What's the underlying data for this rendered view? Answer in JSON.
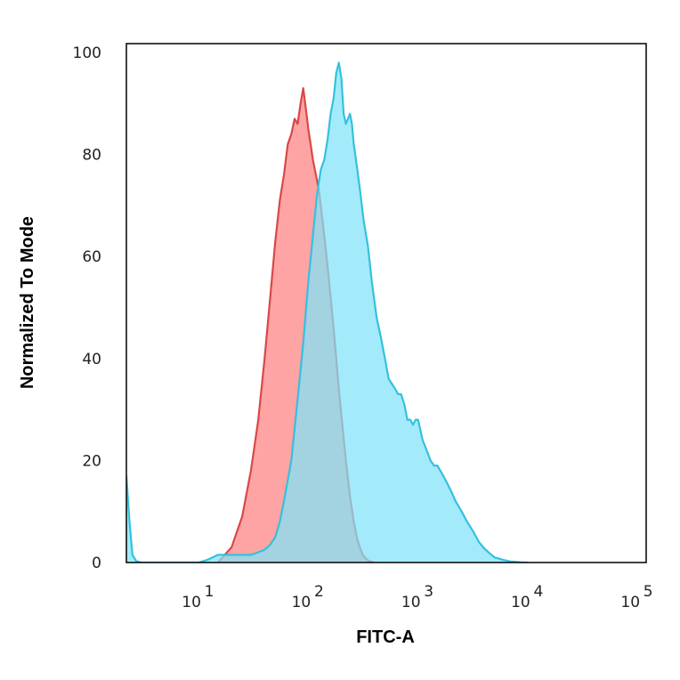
{
  "chart_data": {
    "type": "area",
    "xlabel": "FITC-A",
    "ylabel": "Normalized To Mode",
    "x_scale": "log",
    "xlim": [
      2.2,
      120000
    ],
    "ylim": [
      0,
      100
    ],
    "x_ticks": [
      {
        "value": 10,
        "base": "10",
        "exp": "1"
      },
      {
        "value": 100,
        "base": "10",
        "exp": "2"
      },
      {
        "value": 1000,
        "base": "10",
        "exp": "3"
      },
      {
        "value": 10000,
        "base": "10",
        "exp": "4"
      },
      {
        "value": 100000,
        "base": "10",
        "exp": "5"
      }
    ],
    "y_ticks": [
      "0",
      "20",
      "40",
      "60",
      "80",
      "100"
    ],
    "grid": false,
    "legend": "none",
    "series": [
      {
        "color_fill": "#ff8a8a",
        "color_line": "#d94848",
        "x": [
          15,
          20,
          25,
          30,
          35,
          40,
          45,
          50,
          55,
          60,
          65,
          70,
          75,
          80,
          85,
          90,
          95,
          100,
          105,
          110,
          115,
          120,
          125,
          130,
          140,
          150,
          160,
          170,
          180,
          190,
          200,
          220,
          240,
          260,
          280,
          300,
          320,
          350,
          400
        ],
        "y": [
          0,
          3,
          9,
          18,
          28,
          40,
          52,
          63,
          71,
          76,
          82,
          84,
          87,
          86,
          90,
          93,
          89,
          85,
          82,
          79,
          77,
          75,
          73,
          70,
          64,
          58,
          52,
          46,
          40,
          34,
          29,
          20,
          13,
          8,
          4.5,
          2.5,
          1.2,
          0.4,
          0
        ]
      },
      {
        "color_fill": "#7fe3f8",
        "color_line": "#35c0df",
        "x": [
          2.2,
          2.35,
          2.5,
          2.7,
          3,
          3.5,
          4,
          5,
          6,
          7,
          8,
          9,
          10,
          12,
          15,
          20,
          25,
          30,
          35,
          40,
          45,
          50,
          55,
          60,
          70,
          80,
          90,
          100,
          110,
          120,
          130,
          140,
          150,
          160,
          170,
          180,
          190,
          200,
          210,
          220,
          230,
          240,
          250,
          260,
          280,
          300,
          320,
          350,
          380,
          420,
          460,
          500,
          540,
          580,
          620,
          660,
          700,
          750,
          800,
          850,
          900,
          950,
          1000,
          1050,
          1100,
          1150,
          1200,
          1300,
          1400,
          1500,
          1600,
          1800,
          2000,
          2200,
          2500,
          2800,
          3200,
          3600,
          4000,
          4500,
          5000,
          6000,
          7000,
          8000,
          9000,
          10000
        ],
        "y": [
          17,
          8,
          1.5,
          0.3,
          0,
          0,
          0,
          0,
          0,
          0,
          0,
          0,
          0,
          0.5,
          1.5,
          1.5,
          1.5,
          1.5,
          2,
          2.5,
          3.5,
          5,
          8,
          12,
          20,
          32,
          43,
          55,
          64,
          72,
          77,
          79,
          83,
          88,
          91,
          96,
          98,
          95,
          88,
          86,
          87,
          88,
          86,
          82,
          77,
          72,
          67,
          62,
          55,
          48,
          44,
          40,
          36,
          35,
          34,
          33,
          33,
          31,
          28,
          28,
          27,
          28,
          28,
          26,
          24,
          23,
          22,
          20,
          19,
          19,
          18,
          16,
          14,
          12,
          10,
          8,
          6,
          4,
          2.8,
          1.8,
          1,
          0.5,
          0.2,
          0.1,
          0,
          0
        ]
      }
    ]
  }
}
